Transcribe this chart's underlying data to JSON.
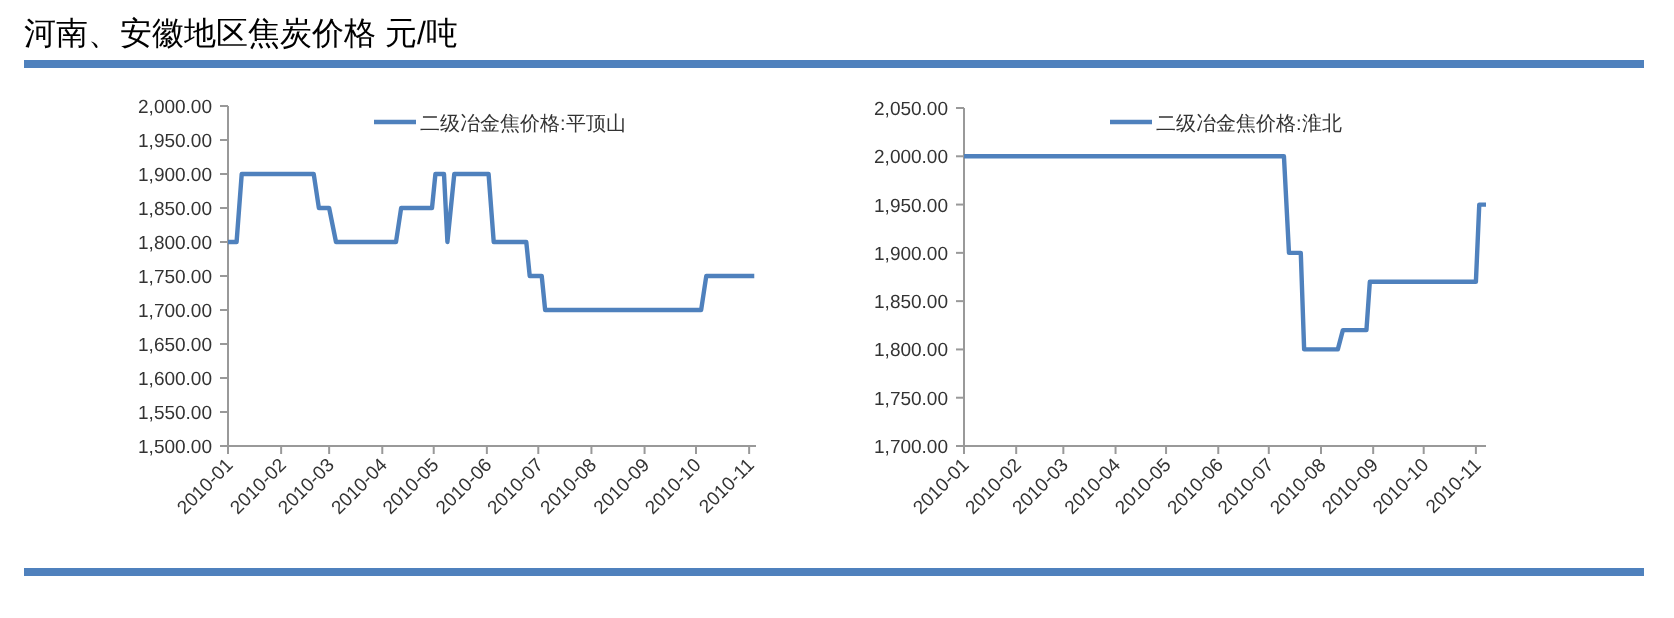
{
  "chart_data": [
    {
      "type": "line",
      "title": "河南、安徽地区焦炭价格 元/吨",
      "legend": "top",
      "x": [
        "2010-01-01",
        "2010-01-06",
        "2010-01-09",
        "2010-02-20",
        "2010-02-23",
        "2010-03-01",
        "2010-03-05",
        "2010-04-09",
        "2010-04-12",
        "2010-04-30",
        "2010-05-02",
        "2010-05-07",
        "2010-05-09",
        "2010-05-13",
        "2010-06-02",
        "2010-06-05",
        "2010-06-24",
        "2010-06-26",
        "2010-07-03",
        "2010-07-05",
        "2010-10-04",
        "2010-10-07",
        "2010-11-04"
      ],
      "series": [
        {
          "name": "二级冶金焦价格:平顶山",
          "color": "#4f81bd",
          "values": [
            1800,
            1800,
            1900,
            1900,
            1850,
            1850,
            1800,
            1800,
            1850,
            1850,
            1900,
            1900,
            1800,
            1900,
            1900,
            1800,
            1800,
            1750,
            1750,
            1700,
            1700,
            1750,
            1750
          ]
        }
      ],
      "xlim": [
        "2010-01-01",
        "2010-11-05"
      ],
      "xticks": [
        "2010-01",
        "2010-02",
        "2010-03",
        "2010-04",
        "2010-05",
        "2010-06",
        "2010-07",
        "2010-08",
        "2010-09",
        "2010-10",
        "2010-11"
      ],
      "ylim": [
        1500,
        2000
      ],
      "yticks": [
        {
          "value": 1500,
          "label": "1,500.00"
        },
        {
          "value": 1550,
          "label": "1,550.00"
        },
        {
          "value": 1600,
          "label": "1,600.00"
        },
        {
          "value": 1650,
          "label": "1,650.00"
        },
        {
          "value": 1700,
          "label": "1,700.00"
        },
        {
          "value": 1750,
          "label": "1,750.00"
        },
        {
          "value": 1800,
          "label": "1,800.00"
        },
        {
          "value": 1850,
          "label": "1,850.00"
        },
        {
          "value": 1900,
          "label": "1,900.00"
        },
        {
          "value": 1950,
          "label": "1,950.00"
        },
        {
          "value": 2000,
          "label": "2,000.00"
        }
      ]
    },
    {
      "type": "line",
      "legend": "top",
      "x": [
        "2010-01-01",
        "2010-07-10",
        "2010-07-13",
        "2010-07-20",
        "2010-07-22",
        "2010-08-11",
        "2010-08-14",
        "2010-08-28",
        "2010-08-30",
        "2010-11-01",
        "2010-11-03",
        "2010-11-07"
      ],
      "series": [
        {
          "name": "二级冶金焦价格:淮北",
          "color": "#4f81bd",
          "values": [
            2000,
            2000,
            1900,
            1900,
            1800,
            1800,
            1820,
            1820,
            1870,
            1870,
            1950,
            1950
          ]
        }
      ],
      "xlim": [
        "2010-01-01",
        "2010-11-07"
      ],
      "xticks": [
        "2010-01",
        "2010-02",
        "2010-03",
        "2010-04",
        "2010-05",
        "2010-06",
        "2010-07",
        "2010-08",
        "2010-09",
        "2010-10",
        "2010-11"
      ],
      "ylim": [
        1700,
        2050
      ],
      "yticks": [
        {
          "value": 1700,
          "label": "1,700.00"
        },
        {
          "value": 1750,
          "label": "1,750.00"
        },
        {
          "value": 1800,
          "label": "1,800.00"
        },
        {
          "value": 1850,
          "label": "1,850.00"
        },
        {
          "value": 1900,
          "label": "1,900.00"
        },
        {
          "value": 1950,
          "label": "1,950.00"
        },
        {
          "value": 2000,
          "label": "2,000.00"
        },
        {
          "value": 2050,
          "label": "2,050.00"
        }
      ]
    }
  ]
}
